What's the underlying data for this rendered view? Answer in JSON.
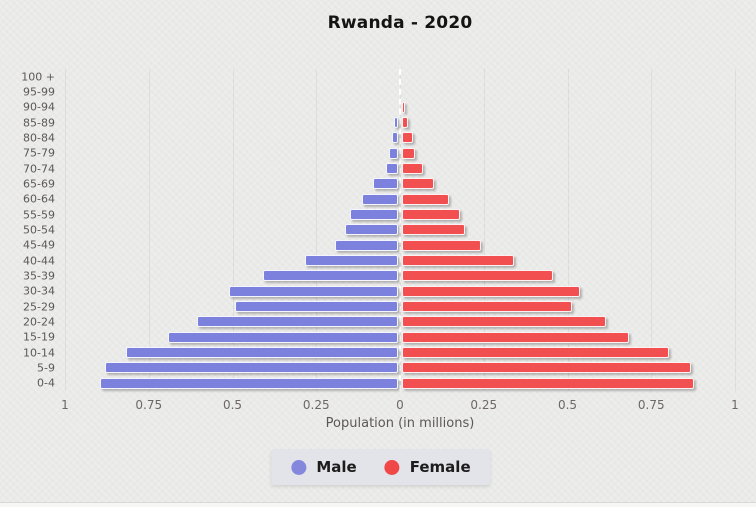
{
  "title": "Rwanda - 2020",
  "x_axis": {
    "label": "Population (in millions)",
    "ticks": [
      "1",
      "0.75",
      "0.5",
      "0.25",
      "0",
      "0.25",
      "0.5",
      "0.75",
      "1"
    ]
  },
  "legend": {
    "male_label": "Male",
    "female_label": "Female"
  },
  "colors": {
    "male_bar": "#7c81de",
    "female_bar": "#f25050",
    "male_legend_dot": "#8488dd",
    "female_legend_dot": "#f04747",
    "background": "#ededec",
    "grid": "#dedede",
    "center_dash": "#ffffff",
    "title_text": "#141414",
    "tick_text": "#6d6864"
  },
  "chart_data": {
    "type": "bar",
    "subtype": "population-pyramid",
    "title": "Rwanda - 2020",
    "xlabel": "Population (in millions)",
    "units": "millions of people",
    "xlim_each_side": [
      0,
      1
    ],
    "grid": "vertical-only",
    "legend_position": "bottom-center",
    "categories_top_to_bottom": [
      "100 +",
      "95-99",
      "90-94",
      "85-89",
      "80-84",
      "75-79",
      "70-74",
      "65-69",
      "60-64",
      "55-59",
      "50-54",
      "45-49",
      "40-44",
      "35-39",
      "30-34",
      "25-29",
      "20-24",
      "15-19",
      "10-14",
      "5-9",
      "0-4"
    ],
    "series": [
      {
        "name": "Male",
        "side": "left",
        "color": "#7c81de",
        "values": [
          0.0,
          0.0,
          0.001,
          0.005,
          0.013,
          0.021,
          0.03,
          0.068,
          0.101,
          0.136,
          0.151,
          0.182,
          0.273,
          0.398,
          0.499,
          0.481,
          0.595,
          0.681,
          0.806,
          0.868,
          0.883
        ]
      },
      {
        "name": "Female",
        "side": "right",
        "color": "#f25050",
        "values": [
          0.0,
          0.001,
          0.004,
          0.013,
          0.027,
          0.033,
          0.056,
          0.089,
          0.134,
          0.167,
          0.183,
          0.229,
          0.327,
          0.445,
          0.525,
          0.5,
          0.603,
          0.673,
          0.792,
          0.858,
          0.866
        ]
      }
    ]
  }
}
